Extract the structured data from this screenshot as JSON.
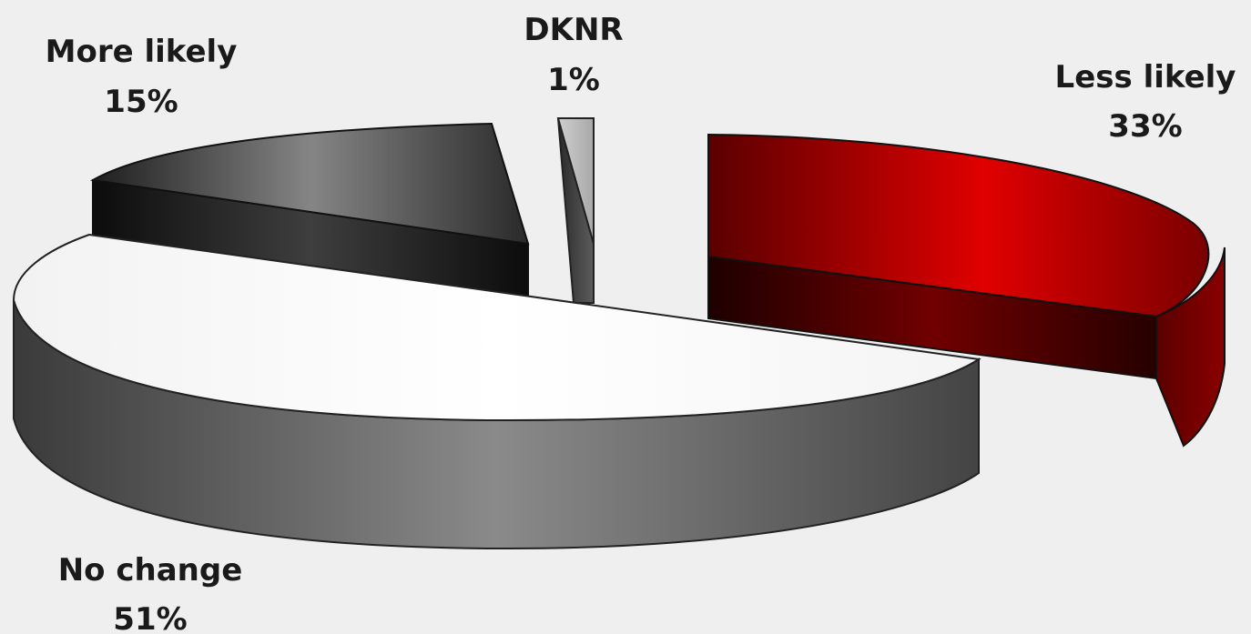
{
  "chart_data": {
    "type": "pie",
    "title": "",
    "slices": [
      {
        "label": "Less likely",
        "value": 33,
        "value_label": "33%",
        "color": "#c00000"
      },
      {
        "label": "No change",
        "value": 51,
        "value_label": "51%",
        "color": "#ffffff"
      },
      {
        "label": "More likely",
        "value": 15,
        "value_label": "15%",
        "color": "#707070"
      },
      {
        "label": "DKNR",
        "value": 1,
        "value_label": "1%",
        "color": "#bdbdbd"
      }
    ],
    "style": "3d-exploded",
    "legend": "none"
  }
}
